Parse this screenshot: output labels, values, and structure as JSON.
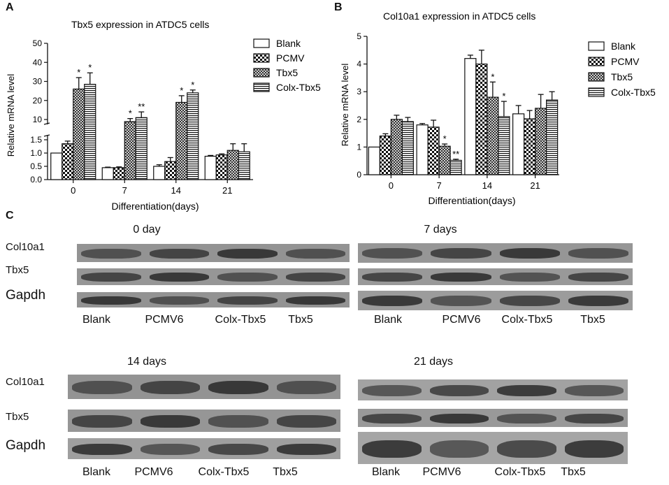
{
  "panel_labels": [
    "A",
    "B",
    "C"
  ],
  "chart_data": [
    {
      "type": "bar",
      "title": "Tbx5  expression in ATDC5 cells",
      "xlabel": "Differentiation(days)",
      "ylabel": "Relative mRNA level",
      "categories": [
        "0",
        "7",
        "14",
        "21"
      ],
      "axis_break": true,
      "yticks_lower": [
        "0.0",
        "0.5",
        "1.0",
        "1.5"
      ],
      "yticks_upper": [
        "10",
        "20",
        "30",
        "40",
        "50"
      ],
      "series": [
        {
          "name": "Blank",
          "pattern": "white",
          "values": [
            1.0,
            0.45,
            0.5,
            0.88
          ],
          "errors": [
            0.0,
            0.02,
            0.06,
            0.03
          ]
        },
        {
          "name": "PCMV",
          "pattern": "checker",
          "values": [
            1.35,
            0.45,
            0.68,
            0.93
          ],
          "errors": [
            0.1,
            0.03,
            0.15,
            0.04
          ]
        },
        {
          "name": "Tbx5",
          "pattern": "hatch",
          "values": [
            26,
            9,
            19,
            1.1
          ],
          "errors": [
            6,
            1.5,
            3.5,
            0.25
          ]
        },
        {
          "name": "Colx-Tbx5",
          "pattern": "hstripe",
          "values": [
            28.5,
            11,
            24,
            1.05
          ],
          "errors": [
            6,
            3,
            1.5,
            0.3
          ]
        }
      ],
      "significance": [
        {
          "category": "0",
          "series": "Tbx5",
          "mark": "*"
        },
        {
          "category": "0",
          "series": "Colx-Tbx5",
          "mark": "*"
        },
        {
          "category": "7",
          "series": "Tbx5",
          "mark": "*"
        },
        {
          "category": "7",
          "series": "Colx-Tbx5",
          "mark": "**"
        },
        {
          "category": "14",
          "series": "Tbx5",
          "mark": "*"
        },
        {
          "category": "14",
          "series": "Colx-Tbx5",
          "mark": "*"
        }
      ]
    },
    {
      "type": "bar",
      "title": "Col10a1 expression in ATDC5 cells",
      "xlabel": "Differentiation(days)",
      "ylabel": "Relative mRNA level",
      "categories": [
        "0",
        "7",
        "14",
        "21"
      ],
      "ylim": [
        0,
        5
      ],
      "yticks": [
        "0",
        "1",
        "2",
        "3",
        "4",
        "5"
      ],
      "series": [
        {
          "name": "Blank",
          "pattern": "white",
          "values": [
            1.0,
            1.8,
            4.2,
            2.2
          ],
          "errors": [
            0.0,
            0.05,
            0.12,
            0.3
          ]
        },
        {
          "name": "PCMV",
          "pattern": "checker",
          "values": [
            1.4,
            1.72,
            4.0,
            2.02
          ],
          "errors": [
            0.08,
            0.25,
            0.5,
            0.3
          ]
        },
        {
          "name": "Tbx5",
          "pattern": "hatch",
          "values": [
            2.0,
            1.03,
            2.8,
            2.4
          ],
          "errors": [
            0.15,
            0.08,
            0.55,
            0.5
          ]
        },
        {
          "name": "Colx-Tbx5",
          "pattern": "hstripe",
          "values": [
            1.92,
            0.52,
            2.1,
            2.7
          ],
          "errors": [
            0.15,
            0.04,
            0.55,
            0.3
          ]
        }
      ],
      "significance": [
        {
          "category": "7",
          "series": "Tbx5",
          "mark": "*"
        },
        {
          "category": "7",
          "series": "Colx-Tbx5",
          "mark": "**"
        },
        {
          "category": "14",
          "series": "Tbx5",
          "mark": "*"
        },
        {
          "category": "14",
          "series": "Colx-Tbx5",
          "mark": "*"
        }
      ]
    }
  ],
  "blots": [
    {
      "title": "0 day",
      "rows": [
        "Col10a1",
        "Tbx5",
        "Gapdh"
      ],
      "lanes": [
        "Blank",
        "PCMV6",
        "Colx-Tbx5",
        "Tbx5"
      ]
    },
    {
      "title": "7 days",
      "rows": [
        "Col10a1",
        "Tbx5",
        "Gapdh"
      ],
      "lanes": [
        "Blank",
        "PCMV6",
        "Colx-Tbx5",
        "Tbx5"
      ]
    },
    {
      "title": "14 days",
      "rows": [
        "Col10a1",
        "Tbx5",
        "Gapdh"
      ],
      "lanes": [
        "Blank",
        "PCMV6",
        "Colx-Tbx5",
        "Tbx5"
      ]
    },
    {
      "title": "21 days",
      "rows": [
        "Col10a1",
        "Tbx5",
        "Gapdh"
      ],
      "lanes": [
        "Blank",
        "PCMV6",
        "Colx-Tbx5",
        "Tbx5"
      ]
    }
  ]
}
